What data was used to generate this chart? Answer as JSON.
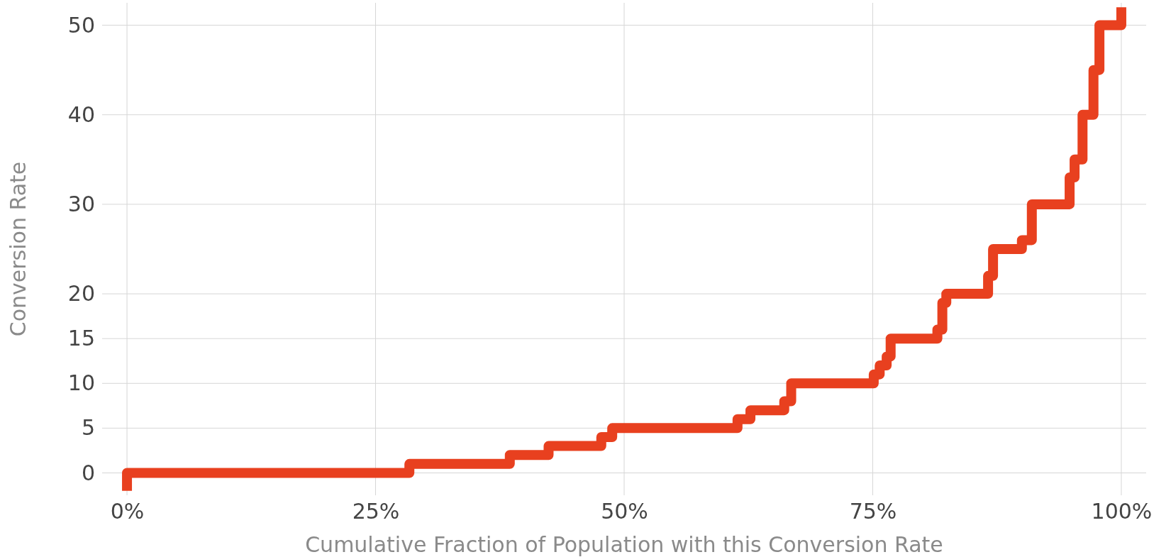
{
  "chart_data": {
    "type": "step",
    "xlabel": "Cumulative Fraction of Population with this Conversion Rate",
    "ylabel": "Conversion Rate",
    "xlim": [
      -2.5,
      102.5
    ],
    "ylim": [
      -2.5,
      52.5
    ],
    "xticks": [
      {
        "value": 0,
        "label": "0%"
      },
      {
        "value": 25,
        "label": "25%"
      },
      {
        "value": 50,
        "label": "50%"
      },
      {
        "value": 75,
        "label": "75%"
      },
      {
        "value": 100,
        "label": "100%"
      }
    ],
    "yticks": [
      0,
      5,
      10,
      15,
      20,
      30,
      40,
      50
    ],
    "grid": true,
    "line_style": "solid",
    "series": [
      {
        "color": "#e8401f",
        "x": [
          0,
          0,
          28.4,
          38.5,
          42.4,
          47.7,
          48.8,
          61.4,
          62.7,
          66.1,
          66.8,
          75.1,
          75.7,
          76.4,
          76.8,
          81.5,
          82,
          82.4,
          86.6,
          87.1,
          90,
          91,
          94.8,
          95.3,
          96.1,
          97.2,
          97.8,
          100
        ],
        "values": [
          -2,
          0,
          1,
          2,
          3,
          4,
          5,
          6,
          7,
          8,
          10,
          11,
          12,
          13,
          15,
          16,
          19,
          20,
          22,
          25,
          26,
          30,
          33,
          35,
          40,
          45,
          50,
          52
        ]
      }
    ]
  }
}
